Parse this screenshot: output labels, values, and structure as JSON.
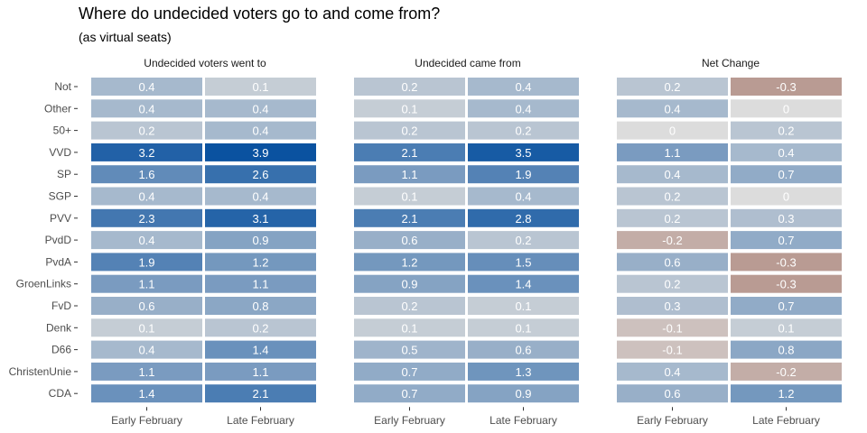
{
  "chart_data": {
    "type": "heatmap",
    "title": "Where do undecided voters go to and come from?",
    "subtitle": "(as virtual seats)",
    "rows": [
      "Not",
      "Other",
      "50+",
      "VVD",
      "SP",
      "SGP",
      "PVV",
      "PvdD",
      "PvdA",
      "GroenLinks",
      "FvD",
      "Denk",
      "D66",
      "ChristenUnie",
      "CDA"
    ],
    "columns": [
      "Early February",
      "Late February"
    ],
    "panels": [
      {
        "title": "Undecided voters went to",
        "values": [
          [
            "0.4",
            "0.1"
          ],
          [
            "0.4",
            "0.4"
          ],
          [
            "0.2",
            "0.4"
          ],
          [
            "3.2",
            "3.9"
          ],
          [
            "1.6",
            "2.6"
          ],
          [
            "0.4",
            "0.4"
          ],
          [
            "2.3",
            "3.1"
          ],
          [
            "0.4",
            "0.9"
          ],
          [
            "1.9",
            "1.2"
          ],
          [
            "1.1",
            "1.1"
          ],
          [
            "0.6",
            "0.8"
          ],
          [
            "0.1",
            "0.2"
          ],
          [
            "0.4",
            "1.4"
          ],
          [
            "1.1",
            "1.1"
          ],
          [
            "1.4",
            "2.1"
          ]
        ]
      },
      {
        "title": "Undecided came from",
        "values": [
          [
            "0.2",
            "0.4"
          ],
          [
            "0.1",
            "0.4"
          ],
          [
            "0.2",
            "0.2"
          ],
          [
            "2.1",
            "3.5"
          ],
          [
            "1.1",
            "1.9"
          ],
          [
            "0.1",
            "0.4"
          ],
          [
            "2.1",
            "2.8"
          ],
          [
            "0.6",
            "0.2"
          ],
          [
            "1.2",
            "1.5"
          ],
          [
            "0.9",
            "1.4"
          ],
          [
            "0.2",
            "0.1"
          ],
          [
            "0.1",
            "0.1"
          ],
          [
            "0.5",
            "0.6"
          ],
          [
            "0.7",
            "1.3"
          ],
          [
            "0.7",
            "0.9"
          ]
        ]
      },
      {
        "title": "Net Change",
        "values": [
          [
            "0.2",
            "-0.3"
          ],
          [
            "0.4",
            "0"
          ],
          [
            "0",
            "0.2"
          ],
          [
            "1.1",
            "0.4"
          ],
          [
            "0.4",
            "0.7"
          ],
          [
            "0.2",
            "0"
          ],
          [
            "0.2",
            "0.3"
          ],
          [
            "-0.2",
            "0.7"
          ],
          [
            "0.6",
            "-0.3"
          ],
          [
            "0.2",
            "-0.3"
          ],
          [
            "0.3",
            "0.7"
          ],
          [
            "-0.1",
            "0.1"
          ],
          [
            "-0.1",
            "0.8"
          ],
          [
            "0.4",
            "-0.2"
          ],
          [
            "0.6",
            "1.2"
          ]
        ]
      }
    ],
    "colors": {
      "positive": "#0a52a0",
      "neutral": "#dcdcdc",
      "negative": "#b08a80"
    },
    "legend": "none"
  }
}
